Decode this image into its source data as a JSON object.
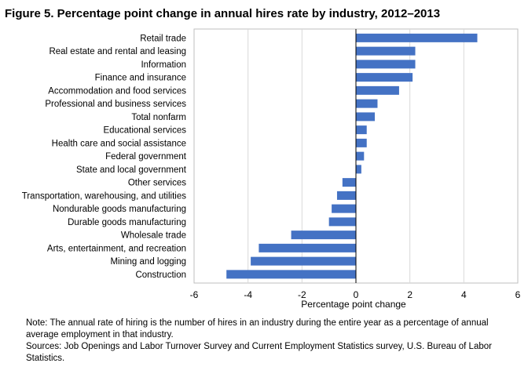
{
  "title": "Figure 5. Percentage point change in annual hires rate by industry, 2012–2013",
  "note": "Note: The annual rate of hiring is the number of hires in an industry during the entire year as a percentage of annual average employment in that industry.",
  "sources": "Sources: Job Openings and Labor Turnover Survey and Current Employment Statistics survey, U.S. Bureau of Labor Statistics.",
  "colors": {
    "bar": "#4472c4",
    "grid": "#d9d9d9",
    "axis": "#000000",
    "frame": "#bfbfbf"
  },
  "chart_data": {
    "type": "bar",
    "orientation": "horizontal",
    "categories": [
      "Retail trade",
      "Real estate and rental and leasing",
      "Information",
      "Finance and insurance",
      "Accommodation and food services",
      "Professional and business services",
      "Total nonfarm",
      "Educational services",
      "Health care and social assistance",
      "Federal government",
      "State and local government",
      "Other services",
      "Transportation, warehousing, and utilities",
      "Nondurable goods manufacturing",
      "Durable goods manufacturing",
      "Wholesale trade",
      "Arts, entertainment, and recreation",
      "Mining and logging",
      "Construction"
    ],
    "values": [
      4.5,
      2.2,
      2.2,
      2.1,
      1.6,
      0.8,
      0.7,
      0.4,
      0.4,
      0.3,
      0.2,
      -0.5,
      -0.7,
      -0.9,
      -1.0,
      -2.4,
      -3.6,
      -3.9,
      -4.8
    ],
    "xlabel": "Percentage point change",
    "xlim": [
      -6,
      6
    ],
    "xticks": [
      -6,
      -4,
      -2,
      0,
      2,
      4,
      6
    ],
    "xtick_labels": [
      "-6",
      "-4",
      "-2",
      "0",
      "2",
      "4",
      "6"
    ],
    "grid": true,
    "legend": false
  }
}
